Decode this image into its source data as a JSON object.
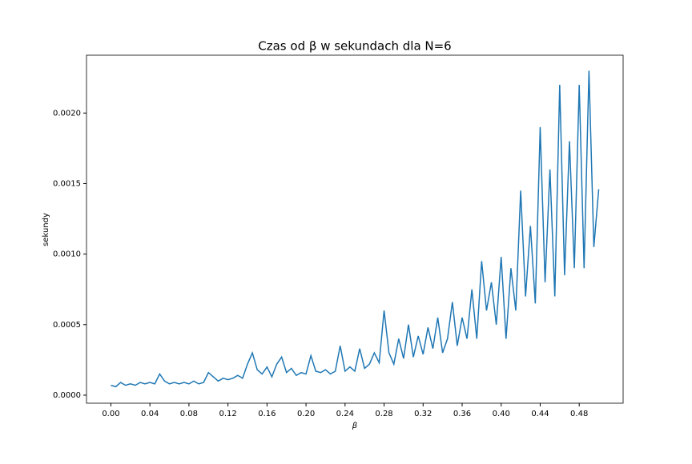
{
  "chart_data": {
    "type": "line",
    "title": "Czas od β w sekundach dla N=6",
    "xlabel": "β",
    "ylabel": "sekundy",
    "x": [
      0,
      0.005,
      0.01,
      0.015,
      0.02,
      0.025,
      0.03,
      0.035,
      0.04,
      0.045,
      0.05,
      0.055,
      0.06,
      0.065,
      0.07,
      0.075,
      0.08,
      0.085,
      0.09,
      0.095,
      0.1,
      0.105,
      0.11,
      0.115,
      0.12,
      0.125,
      0.13,
      0.135,
      0.14,
      0.145,
      0.15,
      0.155,
      0.16,
      0.165,
      0.17,
      0.175,
      0.18,
      0.185,
      0.19,
      0.195,
      0.2,
      0.205,
      0.21,
      0.215,
      0.22,
      0.225,
      0.23,
      0.235,
      0.24,
      0.245,
      0.25,
      0.255,
      0.26,
      0.265,
      0.27,
      0.275,
      0.28,
      0.285,
      0.29,
      0.295,
      0.3,
      0.305,
      0.31,
      0.315,
      0.32,
      0.325,
      0.33,
      0.335,
      0.34,
      0.345,
      0.35,
      0.355,
      0.36,
      0.365,
      0.37,
      0.375,
      0.38,
      0.385,
      0.39,
      0.395,
      0.4,
      0.405,
      0.41,
      0.415,
      0.42,
      0.425,
      0.43,
      0.435,
      0.44,
      0.445,
      0.45,
      0.455,
      0.46,
      0.465,
      0.47,
      0.475,
      0.48,
      0.485,
      0.49,
      0.495,
      0.5
    ],
    "series": [
      {
        "color": "#1f77b4",
        "values": [
          7e-05,
          6e-05,
          9e-05,
          7e-05,
          8e-05,
          7e-05,
          9e-05,
          8e-05,
          9e-05,
          8e-05,
          0.00015,
          0.0001,
          8e-05,
          9e-05,
          8e-05,
          9e-05,
          8e-05,
          0.0001,
          8e-05,
          9e-05,
          0.00016,
          0.00013,
          0.0001,
          0.00012,
          0.00011,
          0.00012,
          0.00014,
          0.00012,
          0.00022,
          0.0003,
          0.00018,
          0.00015,
          0.0002,
          0.00013,
          0.00022,
          0.00027,
          0.00016,
          0.00019,
          0.00014,
          0.00016,
          0.00015,
          0.00028,
          0.00017,
          0.00016,
          0.00018,
          0.00015,
          0.00017,
          0.00035,
          0.00017,
          0.0002,
          0.00017,
          0.00033,
          0.00019,
          0.00022,
          0.0003,
          0.00023,
          0.0006,
          0.0003,
          0.00022,
          0.0004,
          0.00026,
          0.0005,
          0.00027,
          0.00042,
          0.00029,
          0.00048,
          0.00033,
          0.00055,
          0.0003,
          0.0004,
          0.00066,
          0.00035,
          0.00055,
          0.0004,
          0.00075,
          0.0004,
          0.00095,
          0.0006,
          0.0008,
          0.0005,
          0.00098,
          0.0004,
          0.0009,
          0.0006,
          0.00145,
          0.0007,
          0.0012,
          0.00065,
          0.0019,
          0.0008,
          0.0016,
          0.0007,
          0.0022,
          0.00085,
          0.0018,
          0.0009,
          0.0022,
          0.0009,
          0.0023,
          0.00105,
          0.00146
        ]
      }
    ],
    "xlim": [
      -0.025,
      0.525
    ],
    "ylim": [
      -5.7e-05,
      0.00241
    ],
    "xticks": [
      {
        "value": 0,
        "label": "0.00"
      },
      {
        "value": 0.04,
        "label": "0.04"
      },
      {
        "value": 0.08,
        "label": "0.08"
      },
      {
        "value": 0.12,
        "label": "0.12"
      },
      {
        "value": 0.16,
        "label": "0.16"
      },
      {
        "value": 0.2,
        "label": "0.20"
      },
      {
        "value": 0.24,
        "label": "0.24"
      },
      {
        "value": 0.28,
        "label": "0.28"
      },
      {
        "value": 0.32,
        "label": "0.32"
      },
      {
        "value": 0.36,
        "label": "0.36"
      },
      {
        "value": 0.4,
        "label": "0.40"
      },
      {
        "value": 0.44,
        "label": "0.44"
      },
      {
        "value": 0.48,
        "label": "0.48"
      }
    ],
    "yticks": [
      {
        "value": 0,
        "label": "0.0000"
      },
      {
        "value": 0.0005,
        "label": "0.0005"
      },
      {
        "value": 0.001,
        "label": "0.0010"
      },
      {
        "value": 0.0015,
        "label": "0.0015"
      },
      {
        "value": 0.002,
        "label": "0.0020"
      }
    ]
  }
}
